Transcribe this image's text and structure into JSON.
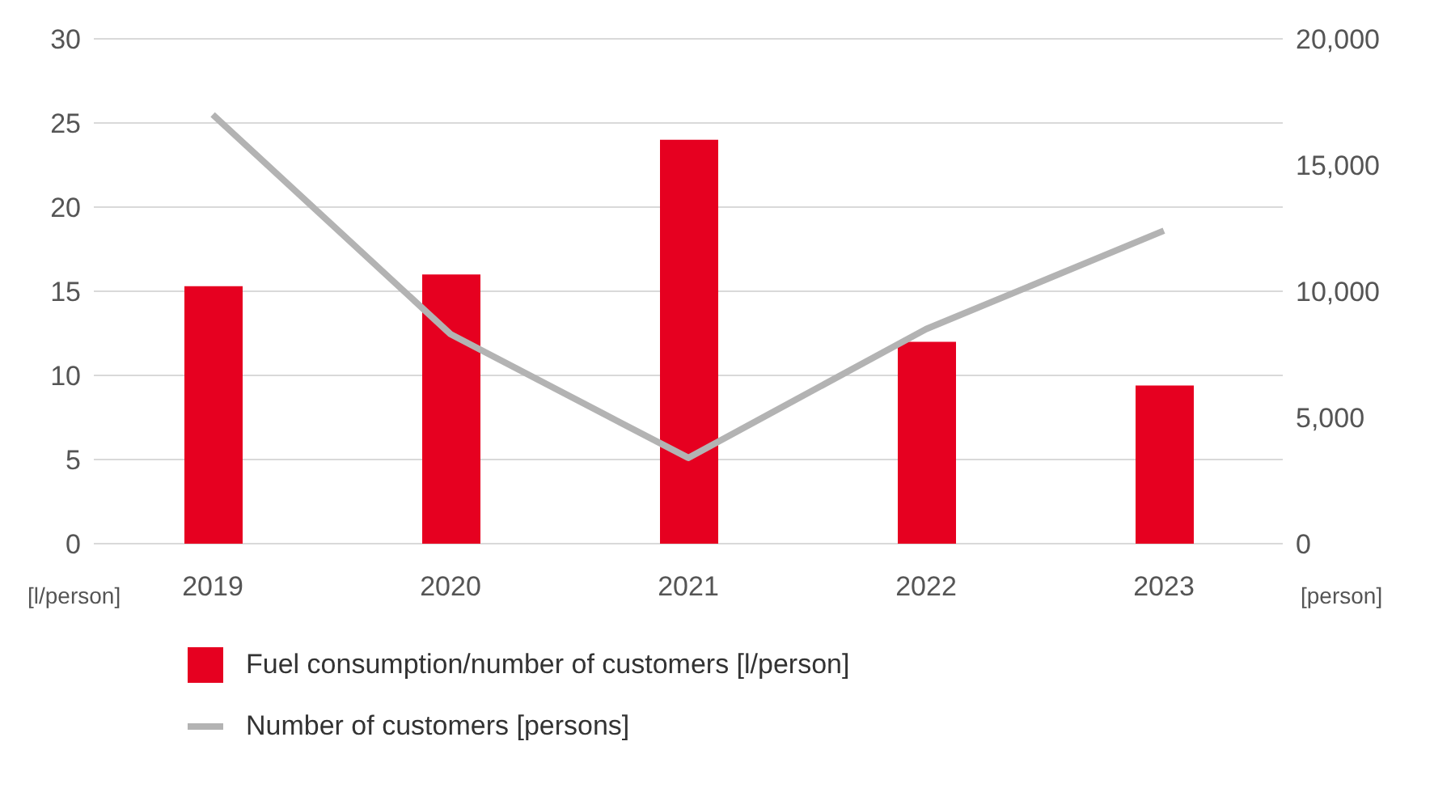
{
  "chart_data": {
    "type": "bar",
    "categories": [
      "2019",
      "2020",
      "2021",
      "2022",
      "2023"
    ],
    "series": [
      {
        "name": "Fuel consumption/number of customers [l/person]",
        "color": "#e60020",
        "values": [
          15.3,
          16.0,
          24.0,
          12.0,
          9.4
        ]
      },
      {
        "name": "Number of customers [persons]",
        "type": "line",
        "axis": "y2",
        "color": "#b3b3b3",
        "values": [
          17000,
          8300,
          3400,
          8500,
          12400
        ]
      }
    ],
    "ylabel": "[l/person]",
    "y2label": "[person]",
    "ylim": [
      0,
      30
    ],
    "yticks": [
      0,
      5,
      10,
      15,
      20,
      25,
      30
    ],
    "y2lim": [
      0,
      20000
    ],
    "y2ticks": [
      0,
      {
        "value": 5000,
        "label": "5,000"
      },
      {
        "value": 10000,
        "label": "10,000"
      },
      {
        "value": 15000,
        "label": "15,000"
      },
      {
        "value": 20000,
        "label": "20,000"
      }
    ],
    "grid": "y",
    "legend": "bottom",
    "marker": "none"
  }
}
